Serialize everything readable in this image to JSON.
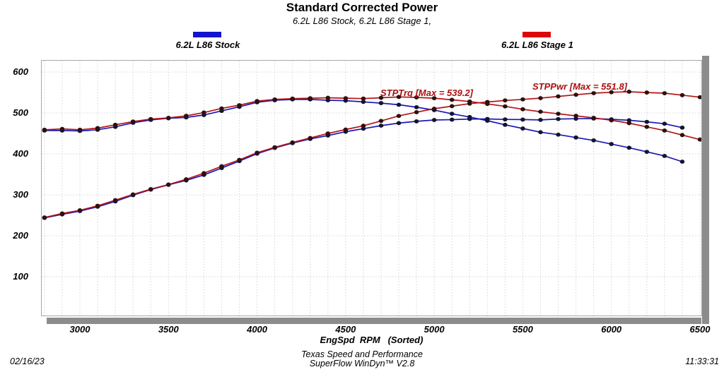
{
  "header": {
    "title": "Standard Corrected Power",
    "subtitle": "6.2L L86 Stock, 6.2L L86 Stage 1,"
  },
  "legend": {
    "stock": {
      "label": "6.2L L86 Stock",
      "color": "#1414cc"
    },
    "stage1": {
      "label": "6.2L L86 Stage 1",
      "color": "#dd0808"
    }
  },
  "annotations": {
    "torque_max": "STPTrq [Max = 539.2]",
    "power_max": "STPPwr [Max = 551.8]"
  },
  "axes": {
    "x": {
      "title": "EngSpd  RPM   (Sorted)",
      "ticks": [
        3000,
        3500,
        4000,
        4500,
        5000,
        5500,
        6000,
        6500
      ]
    },
    "y": {
      "ticks": [
        100,
        200,
        300,
        400,
        500,
        600
      ]
    }
  },
  "footer": {
    "facility": "Texas Speed and Performance",
    "software": "SuperFlow WinDyn™ V2.8",
    "date": "02/16/23",
    "time": "11:33:31"
  },
  "colors": {
    "stock_line": "#1a1ab4",
    "stage1_line": "#b41414",
    "stock_dot": "#14142d",
    "stage1_dot": "#2d1010",
    "annotation": "#aa1111",
    "grid": "#d4d4d4",
    "plot_border": "#a8a8a8",
    "scrollbar": "#8c8c8c"
  },
  "chart_data": {
    "type": "line",
    "title": "Standard Corrected Power",
    "xlabel": "EngSpd RPM (Sorted)",
    "ylabel": "",
    "x_start": 2800,
    "x_step": 100,
    "xlim": [
      2780,
      6512
    ],
    "ylim": [
      0,
      631
    ],
    "x_ticks": [
      3000,
      3500,
      4000,
      4500,
      5000,
      5500,
      6000,
      6500
    ],
    "y_ticks": [
      100,
      200,
      300,
      400,
      500,
      600
    ],
    "grid": true,
    "legend_position": "top",
    "series": [
      {
        "name": "6.2L L86 Stock STPTrq",
        "color_key": "stock",
        "max": 533,
        "values": [
          457,
          457,
          456,
          459,
          466,
          476,
          483,
          487,
          489,
          495,
          505,
          515,
          526,
          531,
          533,
          533,
          531,
          530,
          527,
          524,
          520,
          514,
          507,
          498,
          490,
          481,
          471,
          462,
          453,
          447,
          440,
          433,
          424,
          415,
          405,
          395,
          381
        ]
      },
      {
        "name": "6.2L L86 Stock STPPwr",
        "color_key": "stock",
        "max": 486.4,
        "values": [
          243.6,
          252.3,
          260.4,
          270.9,
          283.9,
          299.1,
          312.7,
          324.5,
          335.2,
          348.7,
          365.4,
          382.4,
          400.6,
          414.5,
          426.4,
          436.5,
          444.9,
          454.1,
          461.6,
          469.0,
          475.2,
          479.5,
          482.7,
          483.6,
          485.2,
          485.4,
          484.2,
          483.8,
          483.0,
          485.1,
          485.9,
          486.4,
          484.4,
          482.0,
          478.2,
          473.7,
          464.2
        ]
      },
      {
        "name": "6.2L L86 Stage 1 STPTrq",
        "color_key": "stage1",
        "max": 539.2,
        "values": [
          459,
          461,
          459,
          463,
          471,
          479,
          485,
          488,
          493,
          501,
          511,
          519,
          529,
          533,
          535,
          536,
          537,
          536,
          535,
          537,
          539.2,
          538,
          536,
          532,
          528,
          522,
          516,
          509,
          503,
          498,
          493,
          488,
          482,
          475,
          466,
          457,
          446,
          435
        ]
      },
      {
        "name": "6.2L L86 Stage 1 STPPwr",
        "color_key": "stage1",
        "max": 551.8,
        "values": [
          244.7,
          254.5,
          262.2,
          273.3,
          287.0,
          301.0,
          314.0,
          325.2,
          337.9,
          353.0,
          369.7,
          385.4,
          402.9,
          416.1,
          427.9,
          438.8,
          449.9,
          459.4,
          468.6,
          480.5,
          492.7,
          501.9,
          510.3,
          516.6,
          522.8,
          526.8,
          530.6,
          533.1,
          536.2,
          540.4,
          544.4,
          548.3,
          550.6,
          551.8,
          549.9,
          548.2,
          543.4,
          538.4
        ]
      }
    ]
  }
}
